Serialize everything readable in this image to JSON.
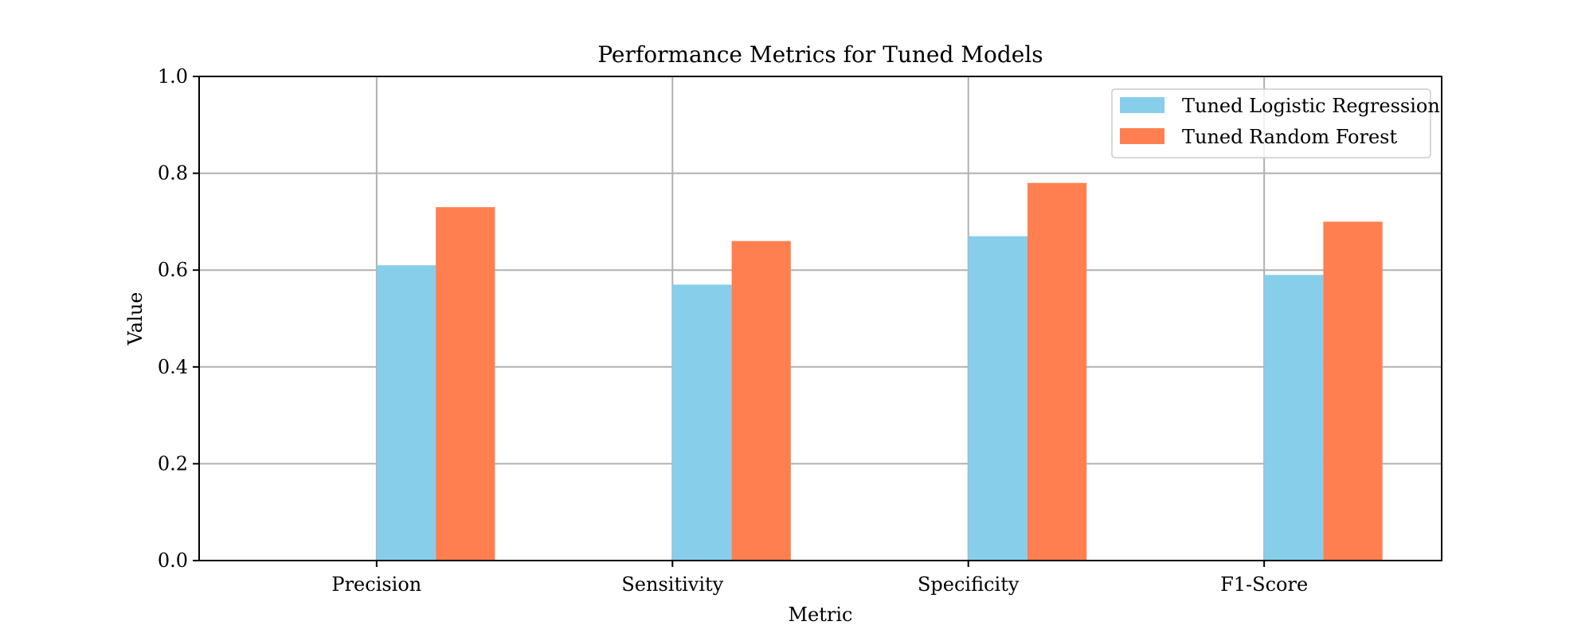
{
  "chart_data": {
    "type": "bar",
    "title": "Performance Metrics for Tuned Models",
    "xlabel": "Metric",
    "ylabel": "Value",
    "categories": [
      "Precision",
      "Sensitivity",
      "Specificity",
      "F1-Score"
    ],
    "series": [
      {
        "name": "Tuned Logistic Regression",
        "values": [
          0.61,
          0.57,
          0.67,
          0.59
        ],
        "color": "#87CEEB"
      },
      {
        "name": "Tuned Random Forest",
        "values": [
          0.73,
          0.66,
          0.78,
          0.7
        ],
        "color": "#FF7F50"
      }
    ],
    "ylim": [
      0,
      1.0
    ],
    "yticks": [
      "0.0",
      "0.2",
      "0.4",
      "0.6",
      "0.8",
      "1.0"
    ],
    "grid": true,
    "legend_position": "top-right",
    "grid_color": "#b0b0b0"
  }
}
